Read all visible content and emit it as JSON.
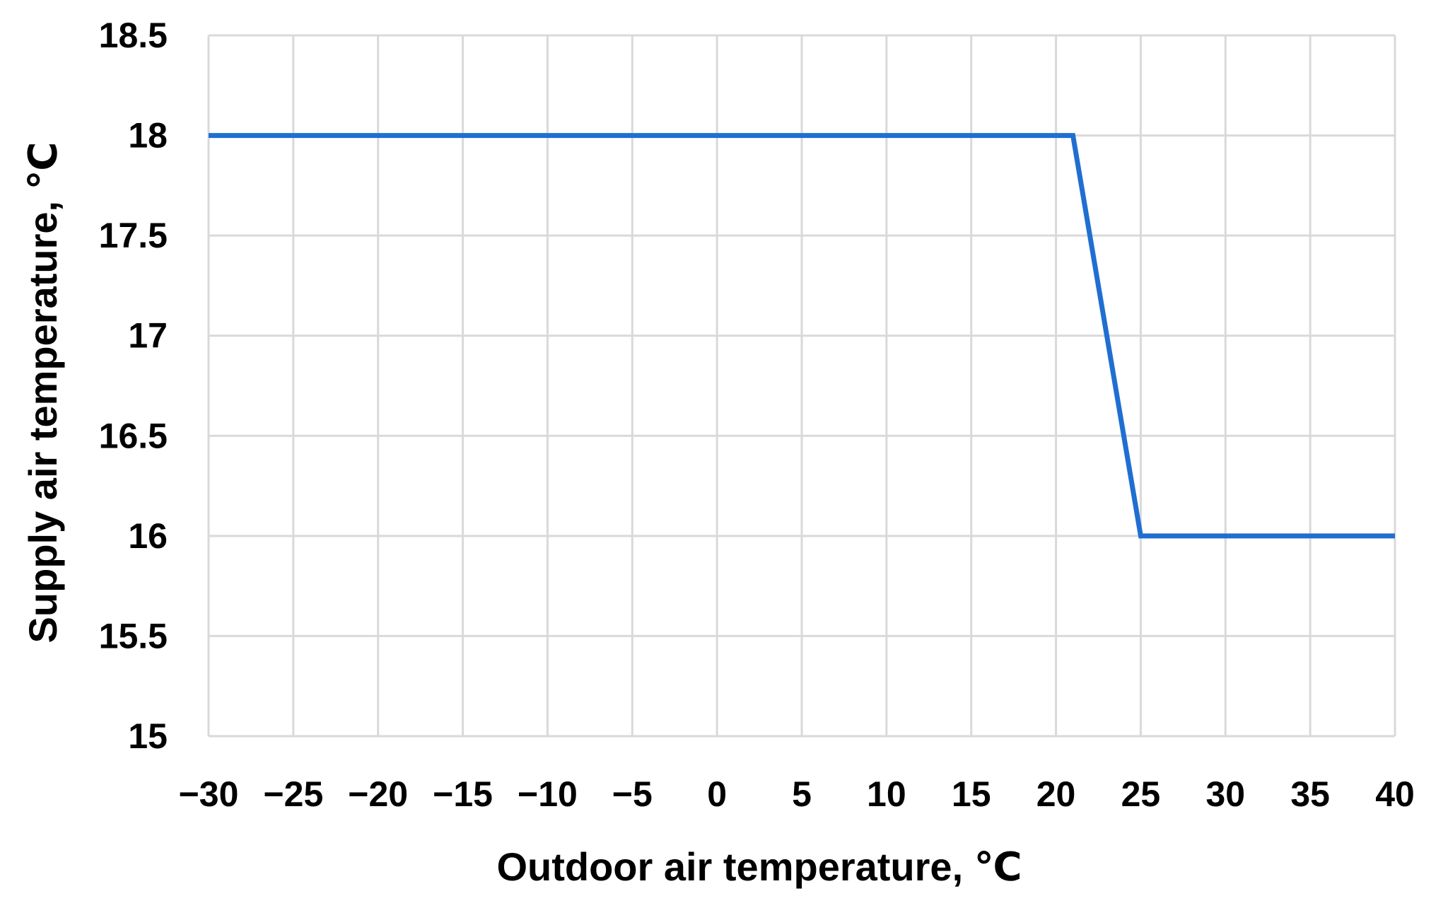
{
  "chart_data": {
    "type": "line",
    "title": "",
    "xlabel": "Outdoor air temperature, ℃",
    "ylabel": "Supply air temperature, ℃",
    "xlim": [
      -30,
      40
    ],
    "ylim": [
      15,
      18.5
    ],
    "x_ticks": [
      -30,
      -25,
      -20,
      -15,
      -10,
      -5,
      0,
      5,
      10,
      15,
      20,
      25,
      30,
      35,
      40
    ],
    "x_tick_labels": [
      "−30",
      "−25",
      "−20",
      "−15",
      "−10",
      "−5",
      "0",
      "5",
      "10",
      "15",
      "20",
      "25",
      "30",
      "35",
      "40"
    ],
    "y_ticks": [
      15,
      15.5,
      16,
      16.5,
      17,
      17.5,
      18,
      18.5
    ],
    "y_tick_labels": [
      "15",
      "15.5",
      "16",
      "16.5",
      "17",
      "17.5",
      "18",
      "18.5"
    ],
    "grid": true,
    "legend": "none",
    "series": [
      {
        "color": "#1f6fd1",
        "x": [
          -30,
          21,
          25,
          40
        ],
        "y": [
          18,
          18,
          16,
          16
        ]
      }
    ]
  }
}
